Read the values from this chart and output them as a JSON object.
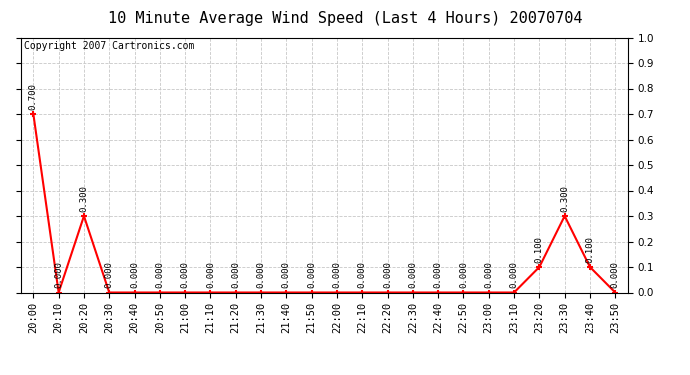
{
  "title": "10 Minute Average Wind Speed (Last 4 Hours) 20070704",
  "copyright_text": "Copyright 2007 Cartronics.com",
  "x_labels": [
    "20:00",
    "20:10",
    "20:20",
    "20:30",
    "20:40",
    "20:50",
    "21:00",
    "21:10",
    "21:20",
    "21:30",
    "21:40",
    "21:50",
    "22:00",
    "22:10",
    "22:20",
    "22:30",
    "22:40",
    "22:50",
    "23:00",
    "23:10",
    "23:20",
    "23:30",
    "23:40",
    "23:50"
  ],
  "y_values": [
    0.7,
    0.0,
    0.3,
    0.0,
    0.0,
    0.0,
    0.0,
    0.0,
    0.0,
    0.0,
    0.0,
    0.0,
    0.0,
    0.0,
    0.0,
    0.0,
    0.0,
    0.0,
    0.0,
    0.0,
    0.1,
    0.3,
    0.1,
    0.0
  ],
  "ylim": [
    0.0,
    1.0
  ],
  "yticks": [
    0.0,
    0.1,
    0.2,
    0.3,
    0.4,
    0.5,
    0.6,
    0.7,
    0.8,
    0.9,
    1.0
  ],
  "line_color": "#ff0000",
  "marker_color": "#ff0000",
  "bg_color": "#ffffff",
  "grid_color": "#c8c8c8",
  "title_fontsize": 11,
  "annotation_fontsize": 6.5,
  "tick_fontsize": 7.5,
  "copyright_fontsize": 7
}
